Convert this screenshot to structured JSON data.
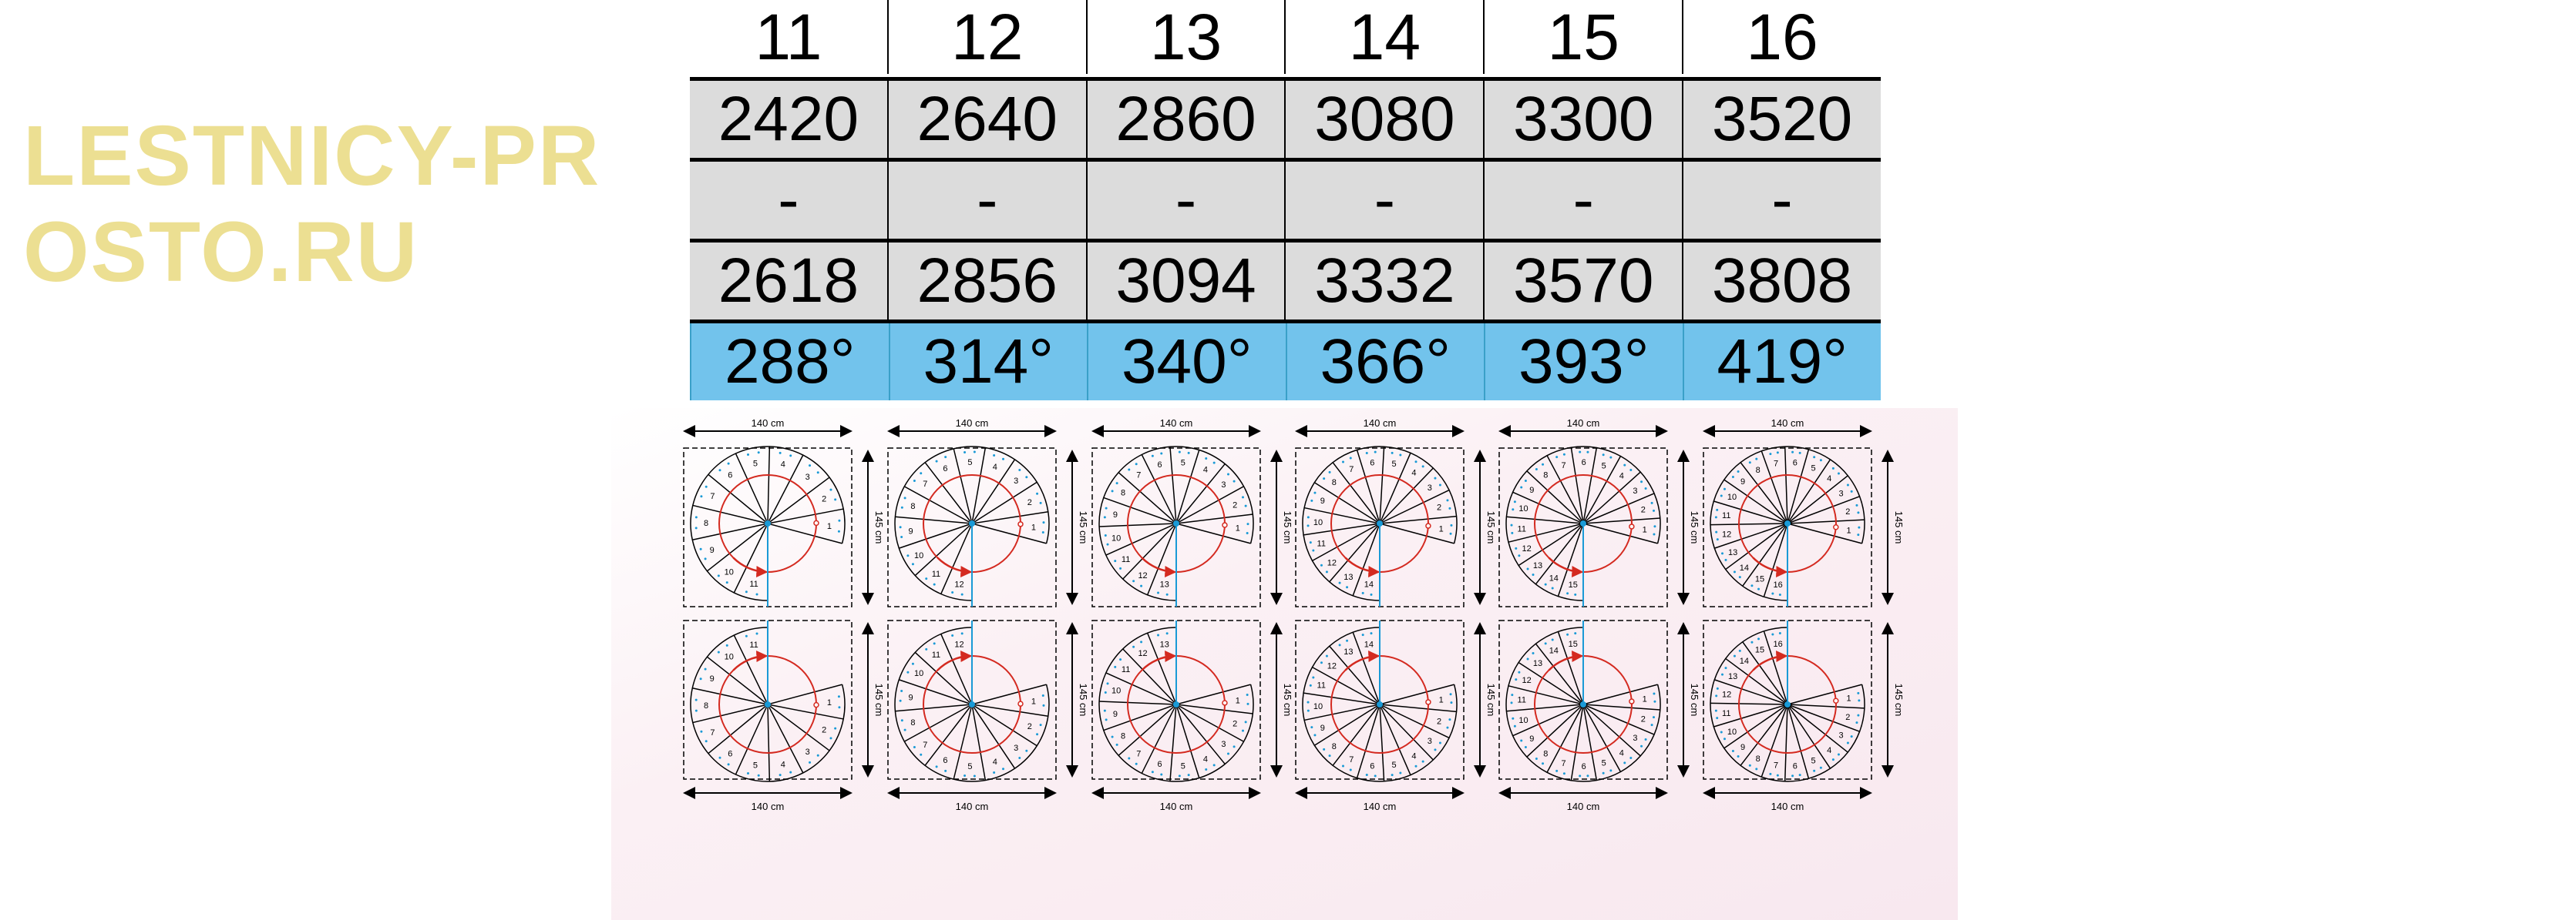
{
  "table": {
    "header": [
      "11",
      "12",
      "13",
      "14",
      "15",
      "16"
    ],
    "rows": [
      [
        "2420",
        "2640",
        "2860",
        "3080",
        "3300",
        "3520"
      ],
      [
        "-",
        "-",
        "-",
        "-",
        "-",
        "-"
      ],
      [
        "2618",
        "2856",
        "3094",
        "3332",
        "3570",
        "3808"
      ],
      [
        "288°",
        "314°",
        "340°",
        "366°",
        "393°",
        "419°"
      ]
    ]
  },
  "watermark": "LESTNICY-PROSTO.RU",
  "diagrams": {
    "width_label": "140 cm",
    "height_label": "145 cm",
    "step_counts": [
      11,
      12,
      13,
      14,
      15,
      16
    ]
  },
  "colors": {
    "row_gray": "#dcdcdc",
    "row_blue": "#72c3ec",
    "arrow_red": "#d42a20",
    "axis_blue": "#1a9ad6"
  }
}
